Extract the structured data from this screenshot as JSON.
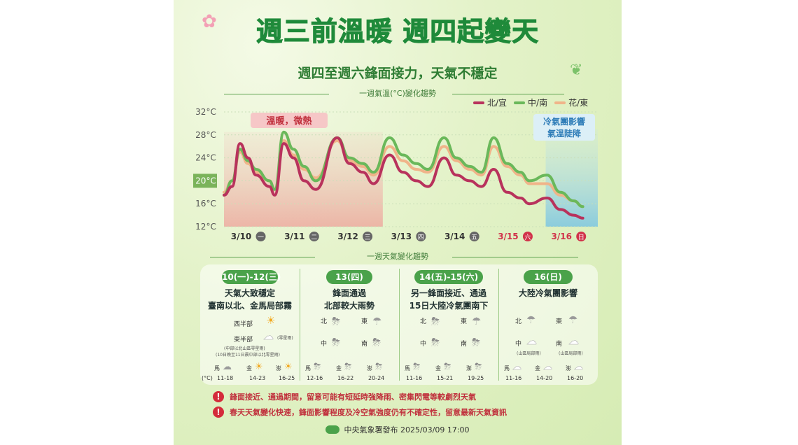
{
  "title": "週三前溫暖 週四起變天",
  "subtitle": "週四至週六鋒面接力，天氣不穩定",
  "chart_title": "一週氣溫(°C)變化趨勢",
  "legend": [
    {
      "name": "北/宜",
      "color": "#b8325c"
    },
    {
      "name": "中/南",
      "color": "#6ab85a"
    },
    {
      "name": "花/東",
      "color": "#f0b489"
    }
  ],
  "annotations": {
    "warm": "溫暖，微熱",
    "cold_line1": "冷氣團影響",
    "cold_line2": "氣溫陡降"
  },
  "chart_data": {
    "type": "line",
    "x_labels": [
      "3/10",
      "3/11",
      "3/12",
      "3/13",
      "3/14",
      "3/15",
      "3/16"
    ],
    "x_day_badges": [
      "一",
      "二",
      "三",
      "四",
      "五",
      "六",
      "日"
    ],
    "y_ticks": [
      "32°C",
      "28°C",
      "24°C",
      "20°C",
      "16°C",
      "12°C"
    ],
    "y_values": [
      32,
      28,
      24,
      20,
      16,
      12
    ],
    "ylim": [
      12,
      32
    ],
    "highlight_tick": "20°C",
    "x_unit_range": [
      0,
      7
    ],
    "series": [
      {
        "name": "北/宜",
        "color": "#b8325c",
        "points": [
          [
            0,
            17.5
          ],
          [
            0.15,
            19
          ],
          [
            0.3,
            26.5
          ],
          [
            0.45,
            24
          ],
          [
            0.6,
            21
          ],
          [
            0.85,
            19
          ],
          [
            0.95,
            17.5
          ],
          [
            1.12,
            26.5
          ],
          [
            1.3,
            24
          ],
          [
            1.5,
            20
          ],
          [
            1.72,
            18.5
          ],
          [
            2.12,
            27.5
          ],
          [
            2.35,
            23
          ],
          [
            2.6,
            21.5
          ],
          [
            2.8,
            19.5
          ],
          [
            3.1,
            24.5
          ],
          [
            3.35,
            21.5
          ],
          [
            3.6,
            20
          ],
          [
            3.82,
            19
          ],
          [
            4.12,
            24
          ],
          [
            4.35,
            21
          ],
          [
            4.6,
            20
          ],
          [
            4.82,
            19
          ],
          [
            5.05,
            22
          ],
          [
            5.3,
            18
          ],
          [
            5.55,
            17
          ],
          [
            5.72,
            16
          ],
          [
            6.05,
            17
          ],
          [
            6.3,
            15
          ],
          [
            6.55,
            14
          ],
          [
            6.72,
            13.5
          ]
        ]
      },
      {
        "name": "中/南",
        "color": "#6ab85a",
        "points": [
          [
            0,
            17.5
          ],
          [
            0.15,
            20
          ],
          [
            0.3,
            25.5
          ],
          [
            0.45,
            23.5
          ],
          [
            0.6,
            22
          ],
          [
            0.85,
            20
          ],
          [
            0.95,
            18.5
          ],
          [
            1.12,
            28.5
          ],
          [
            1.3,
            25.5
          ],
          [
            1.5,
            22.5
          ],
          [
            1.72,
            20
          ],
          [
            2.12,
            27.5
          ],
          [
            2.35,
            24
          ],
          [
            2.6,
            23
          ],
          [
            2.8,
            21.5
          ],
          [
            3.1,
            27.5
          ],
          [
            3.35,
            24.5
          ],
          [
            3.6,
            23
          ],
          [
            3.82,
            22
          ],
          [
            4.12,
            27.5
          ],
          [
            4.35,
            24
          ],
          [
            4.6,
            22.5
          ],
          [
            4.82,
            21.5
          ],
          [
            5.05,
            27.5
          ],
          [
            5.3,
            23
          ],
          [
            5.55,
            21.5
          ],
          [
            5.72,
            20
          ],
          [
            6.05,
            21
          ],
          [
            6.3,
            18
          ],
          [
            6.55,
            16.5
          ],
          [
            6.72,
            15.5
          ]
        ]
      },
      {
        "name": "花/東",
        "color": "#f0b489",
        "points": [
          [
            0,
            18
          ],
          [
            0.15,
            20
          ],
          [
            0.3,
            25
          ],
          [
            0.45,
            23
          ],
          [
            0.6,
            21.5
          ],
          [
            0.85,
            20
          ],
          [
            0.95,
            18.5
          ],
          [
            1.12,
            27
          ],
          [
            1.3,
            24.5
          ],
          [
            1.5,
            22
          ],
          [
            1.72,
            20.5
          ],
          [
            2.12,
            27
          ],
          [
            2.35,
            23.5
          ],
          [
            2.6,
            22.5
          ],
          [
            2.8,
            21
          ],
          [
            3.1,
            26
          ],
          [
            3.35,
            23.5
          ],
          [
            3.6,
            22
          ],
          [
            3.82,
            21.5
          ],
          [
            4.12,
            26
          ],
          [
            4.35,
            23.5
          ],
          [
            4.6,
            22
          ],
          [
            4.82,
            21
          ],
          [
            5.05,
            26
          ],
          [
            5.3,
            22.5
          ],
          [
            5.55,
            21
          ],
          [
            5.72,
            19.5
          ],
          [
            6.05,
            19.5
          ],
          [
            6.3,
            17.5
          ],
          [
            6.55,
            16.5
          ],
          [
            6.72,
            15.5
          ]
        ]
      }
    ]
  },
  "weekly_title": "一週天氣變化趨勢",
  "periods": [
    {
      "label": "10(一)-12(三)",
      "desc": [
        "天氣大致穩定",
        "臺南以北、金馬局部霧"
      ],
      "west": "西半部",
      "east": "東半部",
      "east_note": "(零星雨)",
      "footnote1": "(中部以北山區零星雨)",
      "footnote2": "(10日晚至11日晨中部以北零星雨)",
      "temps": [
        {
          "place": "馬",
          "range": "11-18",
          "icon": "cloud-rain-icon"
        },
        {
          "place": "金",
          "range": "14-23",
          "icon": "sun-cloud-icon"
        },
        {
          "place": "澎",
          "range": "16-25",
          "icon": "sun-cloud-icon"
        }
      ],
      "unit": "(°C)"
    },
    {
      "label": "13(四)",
      "desc": [
        "鋒面通過",
        "北部較大雨勢"
      ],
      "regions": [
        "北",
        "東",
        "中",
        "南"
      ],
      "temps": [
        {
          "place": "馬",
          "range": "12-16",
          "icon": "thunder-icon"
        },
        {
          "place": "金",
          "range": "16-22",
          "icon": "thunder-icon"
        },
        {
          "place": "澎",
          "range": "20-24",
          "icon": "thunder-icon"
        }
      ]
    },
    {
      "label": "14(五)-15(六)",
      "desc": [
        "另一鋒面接近、通過",
        "15日大陸冷氣團南下"
      ],
      "regions": [
        "北",
        "東",
        "中",
        "南"
      ],
      "temps": [
        {
          "place": "馬",
          "range": "11-16",
          "icon": "thunder-icon"
        },
        {
          "place": "金",
          "range": "15-21",
          "icon": "thunder-icon"
        },
        {
          "place": "澎",
          "range": "19-25",
          "icon": "thunder-icon"
        }
      ]
    },
    {
      "label": "16(日)",
      "desc": [
        "大陸冷氣團影響"
      ],
      "regions": [
        "北",
        "東",
        "中",
        "南"
      ],
      "mountain_note": "(山區局部雨)",
      "temps": [
        {
          "place": "馬",
          "range": "11-16",
          "icon": "cloud-icon"
        },
        {
          "place": "金",
          "range": "14-20",
          "icon": "cloud-icon"
        },
        {
          "place": "澎",
          "range": "16-20",
          "icon": "cloud-icon"
        }
      ]
    }
  ],
  "notes": [
    "鋒面接近、通過期間，留意可能有短延時強降雨、密集閃電等較劇烈天氣",
    "春天天氣變化快速，鋒面影響程度及冷空氣強度仍有不確定性，留意最新天氣資訊"
  ],
  "footer": "中央氣象署發布 2025/03/09 17:00"
}
